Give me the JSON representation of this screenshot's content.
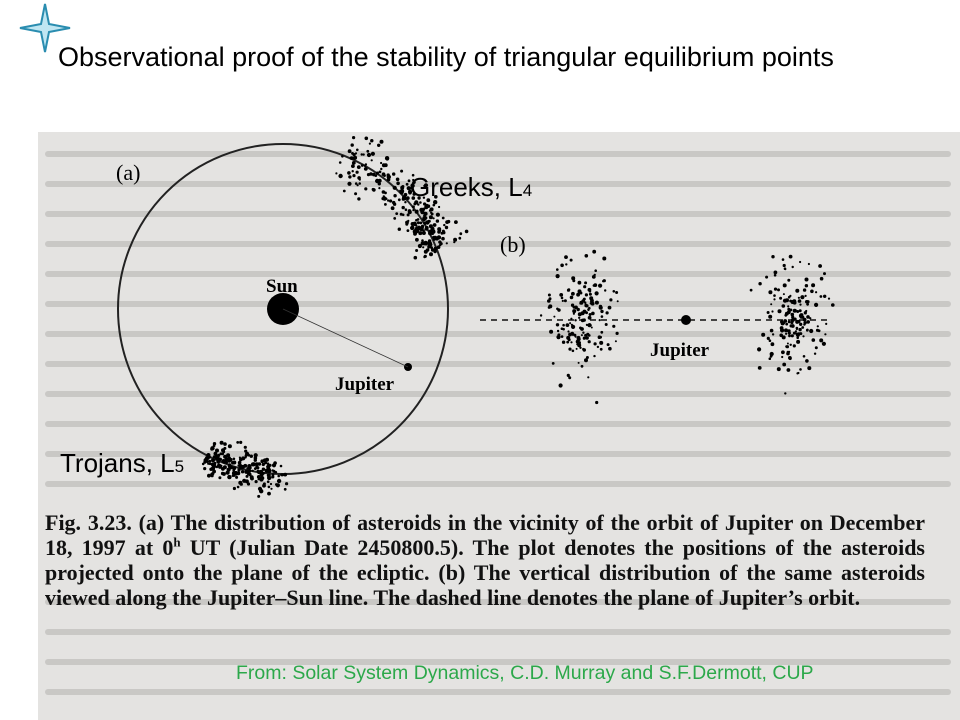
{
  "title": "Observational proof of the stability of  triangular equilibrium points",
  "labels": {
    "greeks": "Greeks, L",
    "greeks_sub": "4",
    "trojans": "Trojans, L",
    "trojans_sub": "5"
  },
  "figure": {
    "panel_a": "(a)",
    "panel_b": "(b)",
    "sun": "Sun",
    "jupiter_a": "Jupiter",
    "jupiter_b": "Jupiter"
  },
  "caption": {
    "part1": "Fig. 3.23.    (a) The distribution of asteroids in the vicinity of the orbit of Jupiter on December 18, 1997 at 0",
    "sup": "h",
    "part2": " UT (Julian Date 2450800.5). The plot denotes the positions of the asteroids projected onto the plane of the ecliptic. (b) The vertical distribution of the same asteroids viewed along the Jupiter–Sun line. The dashed line denotes the plane of Jupiter’s orbit."
  },
  "source": "From: Solar System Dynamics, C.D. Murray and S.F.Dermott, CUP",
  "colors": {
    "source_text": "#2ca84a",
    "logo_star": "#2a8db0"
  }
}
